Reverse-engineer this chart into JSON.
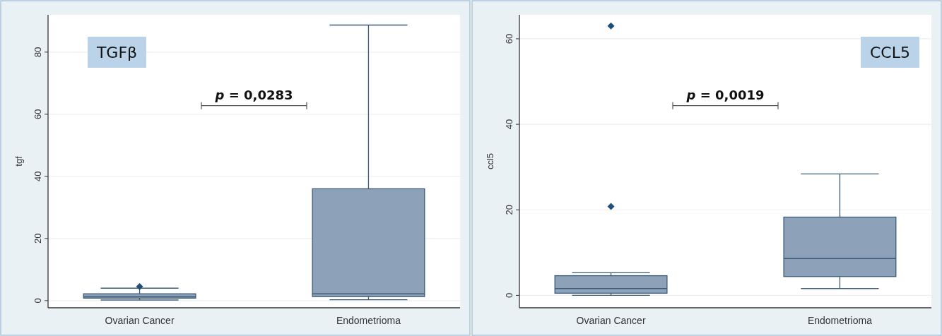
{
  "chart_data": [
    {
      "type": "box",
      "ylabel": "tgf",
      "categories": [
        "Ovarian Cancer",
        "Endometrioma"
      ],
      "ylim": [
        -2.3,
        92
      ],
      "yticks": [
        0,
        20,
        40,
        60,
        80
      ],
      "grid": "y",
      "color": "#8da2b8",
      "boxes": [
        {
          "low": 0.2,
          "q1": 0.8,
          "median": 1.2,
          "q3": 2.2,
          "high": 4.0,
          "outliers": [
            4.5
          ]
        },
        {
          "low": 0.3,
          "q1": 1.3,
          "median": 2.2,
          "q3": 36,
          "high": 88.7
        }
      ],
      "annotations": [
        "TGFβ",
        "p = 0,0283"
      ]
    },
    {
      "type": "box",
      "ylabel": "ccl5",
      "categories": [
        "Ovarian Cancer",
        "Endometrioma"
      ],
      "ylim": [
        -2.9,
        65.6
      ],
      "yticks": [
        0,
        20,
        40,
        60
      ],
      "grid": "y",
      "color": "#8da2b8",
      "boxes": [
        {
          "low": 0,
          "q1": 0.5,
          "median": 1.6,
          "q3": 4.6,
          "high": 5.3,
          "outliers": [
            20.8,
            63
          ]
        },
        {
          "low": 1.6,
          "q1": 4.4,
          "median": 8.6,
          "q3": 18.3,
          "high": 28.4
        }
      ],
      "annotations": [
        "CCL5",
        "p = 0,0019"
      ]
    }
  ]
}
